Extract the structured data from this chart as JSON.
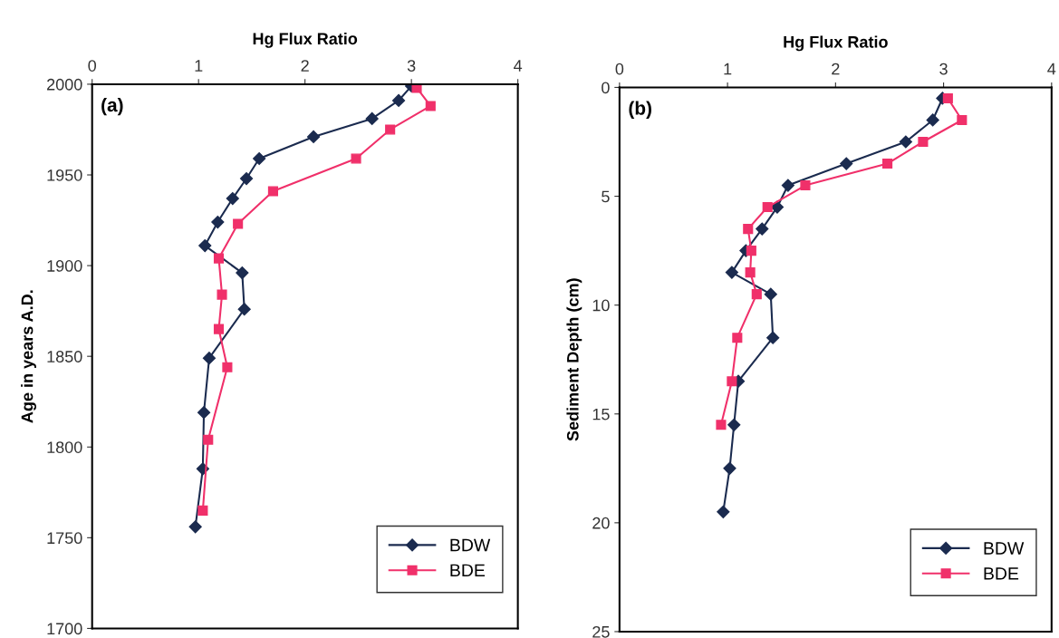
{
  "chart_data": [
    {
      "type": "line",
      "xlabel": "Hg Flux Ratio",
      "ylabel": "Age in years A.D.",
      "annotations": [
        "(a)"
      ],
      "xlim": [
        0,
        4
      ],
      "xticks": [
        0,
        1,
        2,
        3,
        4
      ],
      "ylim": [
        1700,
        2000
      ],
      "yticks": [
        1700,
        1750,
        1800,
        1850,
        1900,
        1950,
        2000
      ],
      "grid": false,
      "legend": "bottom right",
      "line_style": "solid",
      "series": [
        {
          "name": "BDW",
          "color": "#1b2b4f",
          "marker": "diamond",
          "x": [
            3.0,
            2.88,
            2.63,
            2.08,
            1.57,
            1.45,
            1.32,
            1.18,
            1.06,
            1.41,
            1.43,
            1.1,
            1.05,
            1.04,
            0.97
          ],
          "values": [
            1999,
            1991,
            1981,
            1971,
            1959,
            1948,
            1937,
            1924,
            1911,
            1896,
            1876,
            1849,
            1819,
            1788,
            1756
          ]
        },
        {
          "name": "BDE",
          "color": "#f0306a",
          "marker": "square",
          "x": [
            3.05,
            3.18,
            2.8,
            2.48,
            1.7,
            1.37,
            1.19,
            1.22,
            1.19,
            1.27,
            1.09,
            1.04
          ],
          "values": [
            1998,
            1988,
            1975,
            1959,
            1941,
            1923,
            1904,
            1884,
            1865,
            1844,
            1804,
            1765
          ]
        }
      ]
    },
    {
      "type": "line",
      "xlabel": "Hg Flux Ratio",
      "ylabel": "Sediment Depth (cm)",
      "annotations": [
        "(b)"
      ],
      "xlim": [
        0,
        4
      ],
      "xticks": [
        0,
        1,
        2,
        3,
        4
      ],
      "ylim": [
        25,
        0
      ],
      "yticks": [
        0,
        5,
        10,
        15,
        20,
        25
      ],
      "grid": false,
      "legend": "bottom right",
      "line_style": "solid",
      "series": [
        {
          "name": "BDW",
          "color": "#1b2b4f",
          "marker": "diamond",
          "x": [
            2.99,
            2.9,
            2.65,
            2.1,
            1.56,
            1.46,
            1.32,
            1.17,
            1.04,
            1.4,
            1.42,
            1.1,
            1.06,
            1.02,
            0.96
          ],
          "values": [
            0.5,
            1.5,
            2.5,
            3.5,
            4.5,
            5.5,
            6.5,
            7.5,
            8.5,
            9.5,
            11.5,
            13.5,
            15.5,
            17.5,
            19.5
          ]
        },
        {
          "name": "BDE",
          "color": "#f0306a",
          "marker": "square",
          "x": [
            3.04,
            3.17,
            2.81,
            2.48,
            1.72,
            1.37,
            1.19,
            1.22,
            1.21,
            1.27,
            1.09,
            1.04,
            0.94
          ],
          "values": [
            0.5,
            1.5,
            2.5,
            3.5,
            4.5,
            5.5,
            6.5,
            7.5,
            8.5,
            9.5,
            11.5,
            13.5,
            15.5
          ]
        }
      ]
    }
  ]
}
